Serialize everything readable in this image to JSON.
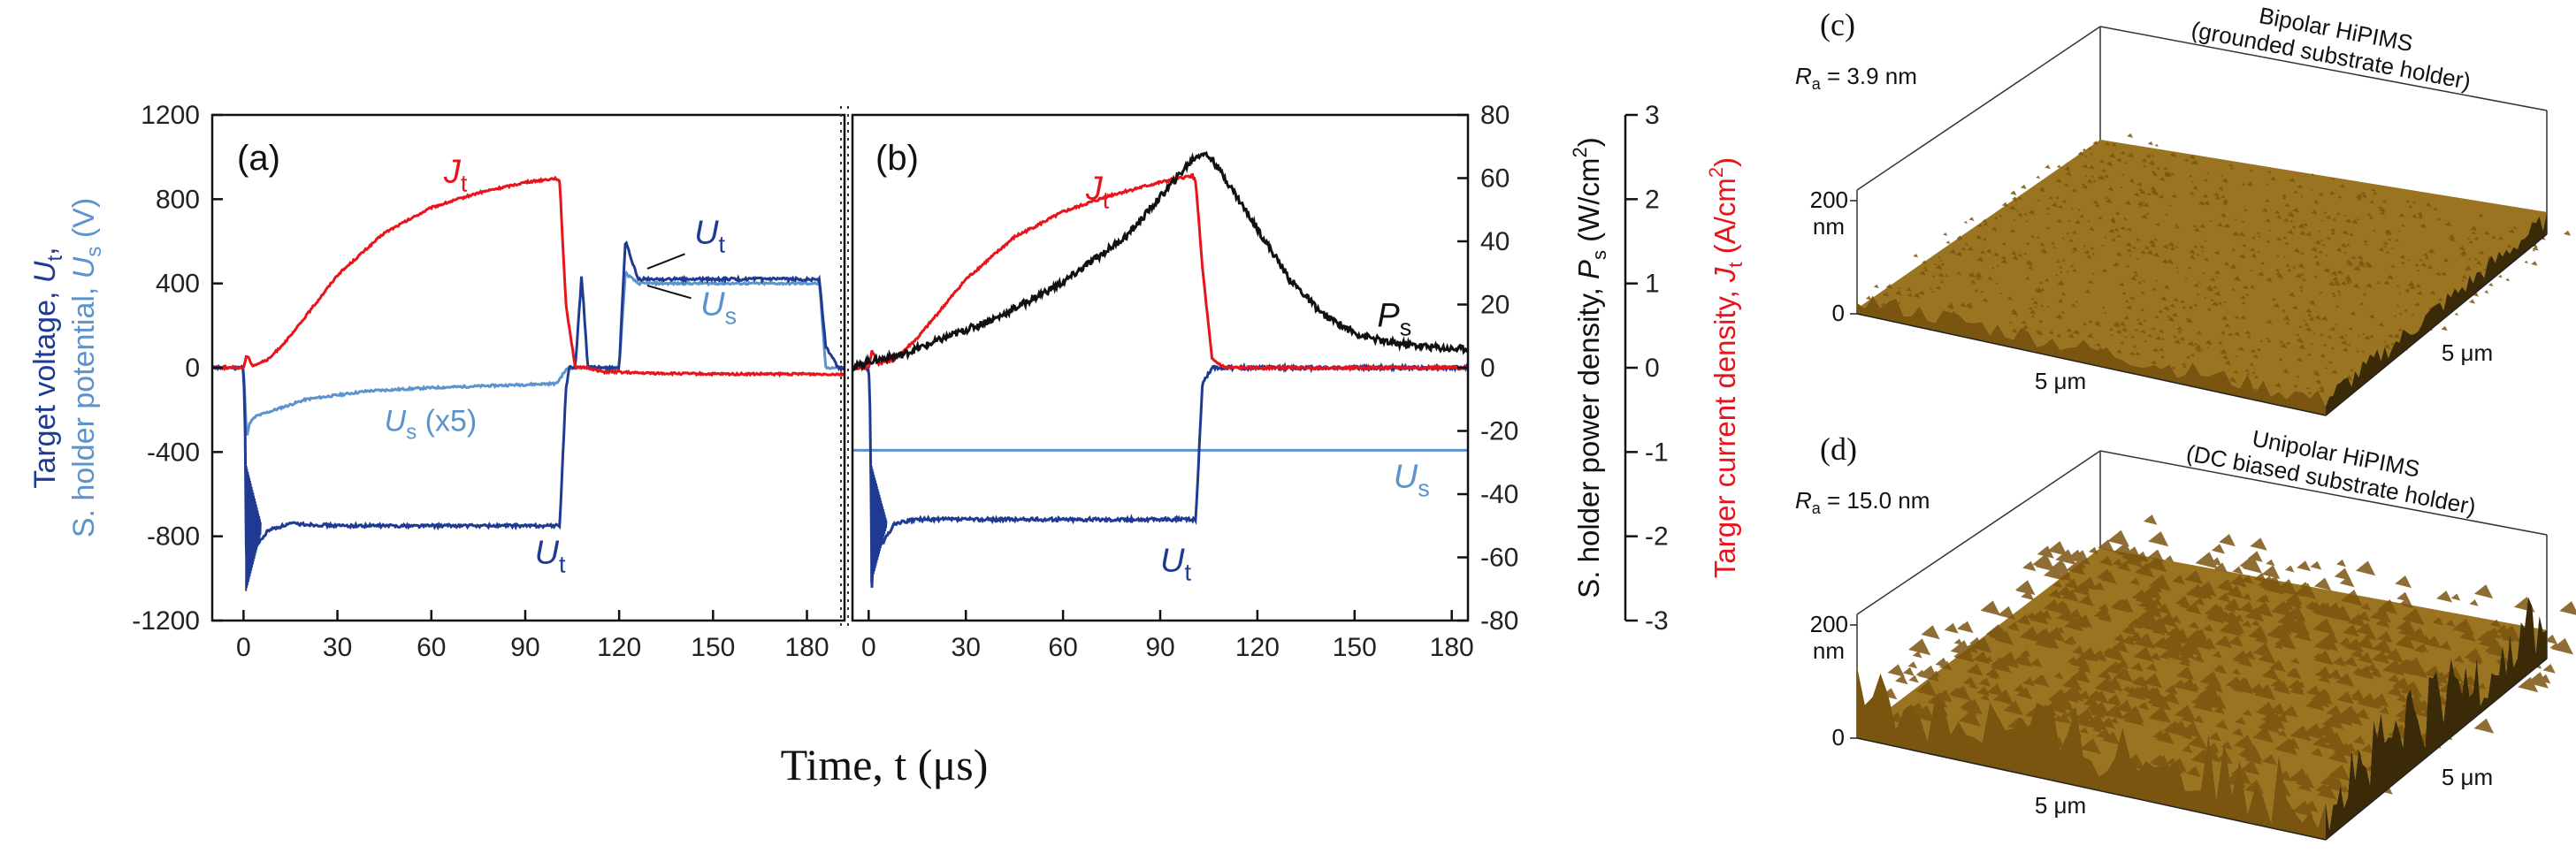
{
  "chart_data": [
    {
      "id": "a",
      "type": "line",
      "panel_label": "(a)",
      "x": [
        0,
        1,
        2,
        4,
        8,
        15,
        30,
        60,
        90,
        100,
        102,
        103,
        105,
        107,
        110,
        115,
        120,
        122,
        125,
        130,
        150,
        180,
        184,
        186
      ],
      "xlim": [
        -10,
        192
      ],
      "xticks": [
        0,
        30,
        60,
        90,
        120,
        150,
        180
      ],
      "ylim": [
        -1200,
        1200
      ],
      "yticks": [
        1200,
        800,
        400,
        0,
        -400,
        -800,
        -1200
      ],
      "ylabel_parts": [
        "Target voltage, ",
        "U",
        "t",
        ",",
        "S. holder potential, ",
        "U",
        "s",
        " (V)"
      ],
      "series": [
        {
          "name": "J_t",
          "color": "#e8141b",
          "x": [
            -10,
            0,
            1,
            3,
            8,
            15,
            30,
            45,
            60,
            75,
            90,
            100,
            101,
            103,
            106,
            110,
            115,
            120,
            125,
            150,
            180,
            192
          ],
          "values": [
            0,
            0,
            60,
            10,
            40,
            150,
            440,
            640,
            760,
            830,
            880,
            900,
            880,
            300,
            0,
            0,
            -20,
            -20,
            -25,
            -30,
            -30,
            -30
          ]
        },
        {
          "name": "U_t",
          "color": "#1f3a93",
          "x": [
            -10,
            0,
            0.5,
            1,
            2,
            4,
            8,
            15,
            30,
            60,
            90,
            100,
            101,
            103,
            104,
            106,
            108,
            110,
            120,
            122,
            126,
            130,
            150,
            180,
            184,
            186,
            190,
            192
          ],
          "values": [
            0,
            0,
            -300,
            -1080,
            -600,
            -850,
            -770,
            -740,
            -750,
            -750,
            -750,
            -750,
            -750,
            -100,
            0,
            0,
            440,
            0,
            0,
            600,
            420,
            420,
            420,
            420,
            420,
            100,
            0,
            0
          ]
        },
        {
          "name": "U_s",
          "color": "#5b93cc",
          "x": [
            -10,
            0,
            1,
            2,
            4,
            8,
            20,
            40,
            60,
            90,
            100,
            103,
            105,
            120,
            122,
            126,
            130,
            180,
            184,
            186,
            192
          ],
          "values": [
            0,
            0,
            -330,
            -260,
            -230,
            -210,
            -150,
            -110,
            -95,
            -80,
            -75,
            -10,
            0,
            0,
            450,
            400,
            400,
            400,
            400,
            0,
            0
          ]
        }
      ],
      "labels": {
        "J_t": {
          "main": "J",
          "sub": "t"
        },
        "U_t_top": {
          "main": "U",
          "sub": "t"
        },
        "U_s_top": {
          "main": "U",
          "sub": "s"
        },
        "U_s_x5": {
          "main": "U",
          "sub": "s",
          "suffix": " (x5)"
        },
        "U_t_bottom": {
          "main": "U",
          "sub": "t"
        }
      }
    },
    {
      "id": "b",
      "type": "line",
      "panel_label": "(b)",
      "x": [
        0,
        30,
        60,
        90,
        120,
        150,
        180
      ],
      "xlim": [
        -5,
        185
      ],
      "xticks": [
        0,
        30,
        60,
        90,
        120,
        150,
        180
      ],
      "y_power_lim": [
        -80,
        80
      ],
      "y_power_ticks": [
        80,
        60,
        40,
        20,
        0,
        -20,
        -40,
        -60,
        -80
      ],
      "y_current_lim": [
        -3,
        3
      ],
      "y_current_ticks": [
        3,
        2,
        1,
        0,
        -1,
        -2,
        -3
      ],
      "ylabel_power": "S. holder power density, P_s (W/cm²)",
      "ylabel_current": "Targer current density, J_t (A/cm²)",
      "series": [
        {
          "name": "P_s",
          "color": "#111111",
          "axis": "power",
          "x": [
            -5,
            0,
            10,
            20,
            40,
            60,
            80,
            95,
            100,
            103,
            106,
            110,
            120,
            130,
            140,
            150,
            160,
            170,
            180,
            185
          ],
          "values": [
            0,
            2,
            4,
            8,
            16,
            27,
            42,
            60,
            66,
            68,
            66,
            60,
            44,
            28,
            17,
            11,
            8,
            7,
            6,
            6
          ]
        },
        {
          "name": "J_t",
          "color": "#e8141b",
          "axis": "current",
          "x": [
            -5,
            0,
            1,
            3,
            8,
            15,
            30,
            45,
            60,
            75,
            90,
            100,
            101,
            103,
            106,
            110,
            115,
            185
          ],
          "values": [
            0,
            0,
            0.2,
            0.05,
            0.1,
            0.35,
            1.05,
            1.55,
            1.85,
            2.05,
            2.2,
            2.28,
            2.2,
            1.2,
            0.1,
            0,
            0,
            0
          ]
        },
        {
          "name": "U_t",
          "color": "#1f3a93",
          "axis": "current",
          "x": [
            -5,
            0,
            0.5,
            1,
            2,
            4,
            8,
            15,
            30,
            60,
            90,
            100,
            101,
            103,
            106,
            185
          ],
          "values": [
            0,
            0,
            -0.6,
            -2.6,
            -1.5,
            -2.1,
            -1.85,
            -1.8,
            -1.8,
            -1.8,
            -1.8,
            -1.8,
            -1.8,
            -0.2,
            0,
            0
          ]
        },
        {
          "name": "U_s",
          "color": "#5b93cc",
          "axis": "current",
          "x": [
            -5,
            185
          ],
          "values": [
            -0.98,
            -0.98
          ]
        }
      ],
      "labels": {
        "J_t": {
          "main": "J",
          "sub": "t"
        },
        "P_s": {
          "main": "P",
          "sub": "s"
        },
        "U_s": {
          "main": "U",
          "sub": "s"
        },
        "U_t": {
          "main": "U",
          "sub": "t"
        }
      }
    }
  ],
  "xlabel": "Time, t (μs)",
  "afm": [
    {
      "id": "c",
      "panel_label": "(c)",
      "ra_label": "R",
      "ra_sub": "a",
      "ra_value": " = 3.9 nm",
      "title_line1": "Bipolar HiPIMS",
      "title_line2": "(grounded substrate holder)",
      "z_tick_top": "200",
      "z_unit": "nm",
      "z_tick_zero": "0",
      "x_label": "5 μm",
      "y_label": "5 μm",
      "roughness": 0.15
    },
    {
      "id": "d",
      "panel_label": "(d)",
      "ra_label": "R",
      "ra_sub": "a",
      "ra_value": " = 15.0 nm",
      "title_line1": "Unipolar HiPIMS",
      "title_line2": "(DC biased substrate holder)",
      "z_tick_top": "200",
      "z_unit": "nm",
      "z_tick_zero": "0",
      "x_label": "5 μm",
      "y_label": "5 μm",
      "roughness": 0.6
    }
  ],
  "colors": {
    "red": "#e8141b",
    "dark_blue": "#1f3a93",
    "light_blue": "#5b93cc",
    "black": "#111111",
    "afm_top": "#9a7420",
    "afm_side": "#7a5510",
    "afm_dark": "#3a2a08"
  }
}
